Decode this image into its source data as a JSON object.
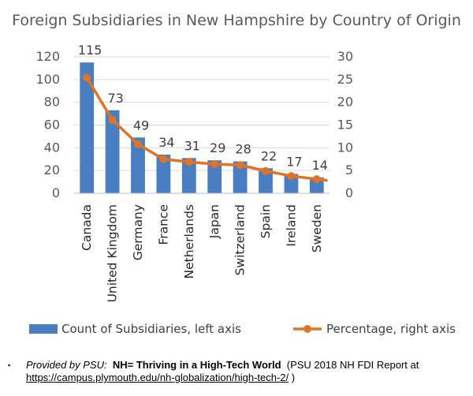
{
  "chart_data": {
    "type": "bar",
    "title": "Foreign Subsidiaries in New Hampshire by Country of Origin",
    "categories": [
      "Canada",
      "United Kingdom",
      "Germany",
      "France",
      "Netherlands",
      "Japan",
      "Switzerland",
      "Spain",
      "Ireland",
      "Sweden"
    ],
    "series": [
      {
        "name": "Count of Subsidiaries, left axis",
        "type": "bar",
        "axis": "left",
        "values": [
          115,
          73,
          49,
          34,
          31,
          29,
          28,
          22,
          17,
          14
        ],
        "color": "#4A7EC2"
      },
      {
        "name": "Percentage, right axis",
        "type": "line",
        "axis": "right",
        "values": [
          25.4,
          16.1,
          10.8,
          7.5,
          6.9,
          6.4,
          6.2,
          4.9,
          3.8,
          3.1
        ],
        "color": "#E07426"
      }
    ],
    "left_axis": {
      "min": 0,
      "max": 120,
      "ticks": [
        "0",
        "20",
        "40",
        "60",
        "80",
        "100",
        "120"
      ]
    },
    "right_axis": {
      "min": 0,
      "max": 30,
      "ticks": [
        "0",
        "5",
        "10",
        "15",
        "20",
        "25",
        "30"
      ]
    },
    "data_labels": [
      "115",
      "73",
      "49",
      "34",
      "31",
      "29",
      "28",
      "22",
      "17",
      "14"
    ],
    "grid": true,
    "legend_position": "bottom"
  },
  "caption": {
    "bullet": "▪",
    "provided_by": "Provided by PSU:",
    "report_title": "NH= Thriving in a High-Tech World",
    "report_detail": "(PSU 2018 NH FDI Report at",
    "link_text": "https://campus.plymouth.edu/nh-globalization/high-tech-2/",
    "closing": ")"
  }
}
